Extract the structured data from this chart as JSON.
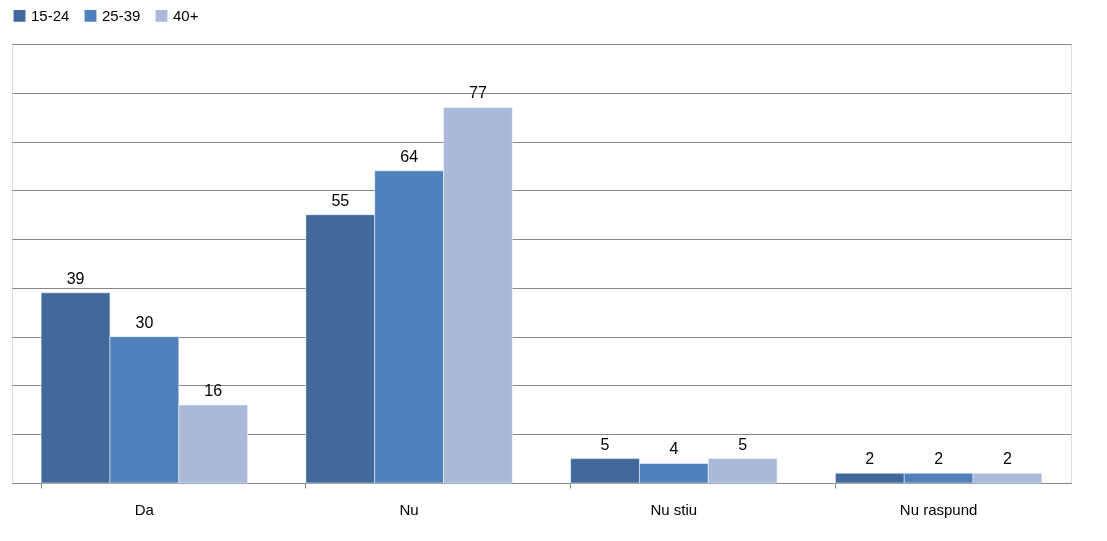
{
  "chart_data": {
    "type": "bar",
    "categories": [
      "Da",
      "Nu",
      "Nu stiu",
      "Nu raspund"
    ],
    "series": [
      {
        "name": "15-24",
        "color": "#41699c",
        "values": [
          39,
          55,
          5,
          2
        ]
      },
      {
        "name": "25-39",
        "color": "#4f81bd",
        "values": [
          30,
          64,
          4,
          2
        ]
      },
      {
        "name": "40+",
        "color": "#aab9d8",
        "values": [
          16,
          77,
          5,
          2
        ]
      }
    ],
    "ylim": [
      0,
      90
    ],
    "yticks": [
      {
        "value": 0,
        "label": null
      },
      {
        "value": 10,
        "label": null
      },
      {
        "value": 20,
        "label": null
      },
      {
        "value": 30,
        "label": null
      },
      {
        "value": 40,
        "label": null
      },
      {
        "value": 50,
        "label": null
      },
      {
        "value": 60,
        "label": null
      },
      {
        "value": 70,
        "label": null
      },
      {
        "value": 80,
        "label": null
      },
      {
        "value": 90,
        "label": null
      }
    ],
    "tick_labels": "x",
    "grid": "y",
    "legend": "top",
    "data_labels": true
  }
}
